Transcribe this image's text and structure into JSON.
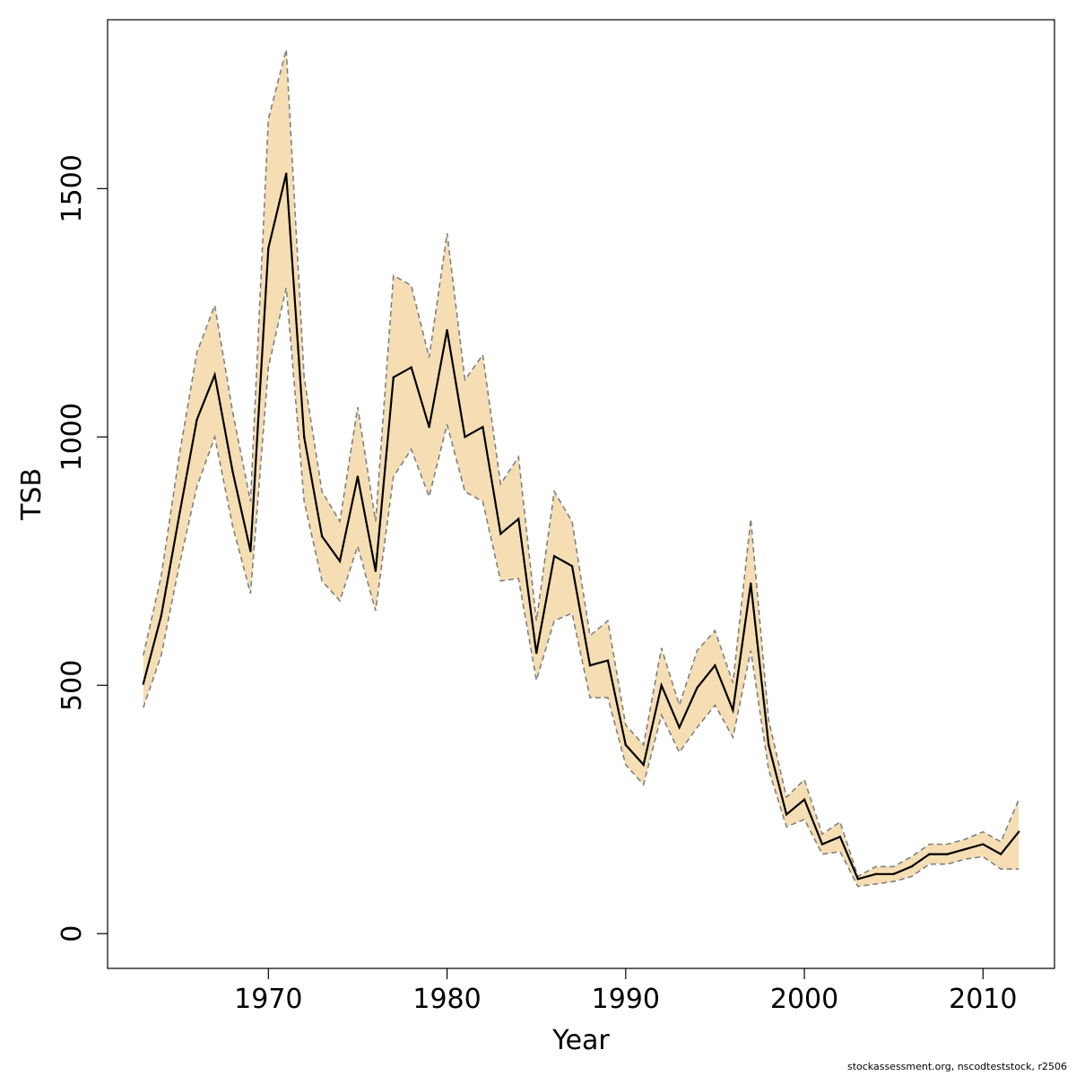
{
  "chart_data": {
    "type": "line",
    "xlabel": "Year",
    "ylabel": "TSB",
    "xlim": [
      1961,
      2014
    ],
    "ylim": [
      -70,
      1840
    ],
    "x_ticks": [
      1970,
      1980,
      1990,
      2000,
      2010
    ],
    "y_ticks": [
      0,
      500,
      1000,
      1500
    ],
    "colors": {
      "band": "#F5DEB3",
      "line": "#000000",
      "dash": "#808080",
      "frame": "#000000"
    },
    "grid": false,
    "legend": "none",
    "x": [
      1963,
      1964,
      1965,
      1966,
      1967,
      1968,
      1969,
      1970,
      1971,
      1972,
      1973,
      1974,
      1975,
      1976,
      1977,
      1978,
      1979,
      1980,
      1981,
      1982,
      1983,
      1984,
      1985,
      1986,
      1987,
      1988,
      1989,
      1990,
      1991,
      1992,
      1993,
      1994,
      1995,
      1996,
      1997,
      1998,
      1999,
      2000,
      2001,
      2002,
      2003,
      2004,
      2005,
      2006,
      2007,
      2008,
      2009,
      2010,
      2011,
      2012
    ],
    "series": [
      {
        "values": [
          503,
          640,
          840,
          1035,
          1125,
          930,
          770,
          1380,
          1530,
          1000,
          800,
          750,
          920,
          730,
          1120,
          1140,
          1020,
          1215,
          1000,
          1020,
          805,
          835,
          565,
          760,
          740,
          540,
          550,
          380,
          340,
          500,
          415,
          495,
          540,
          450,
          705,
          380,
          240,
          270,
          180,
          195,
          110,
          120,
          120,
          135,
          160,
          160,
          170,
          180,
          160,
          205
        ],
        "lower": [
          455,
          560,
          740,
          900,
          1000,
          820,
          685,
          1140,
          1300,
          870,
          710,
          670,
          780,
          650,
          920,
          975,
          880,
          1025,
          890,
          870,
          710,
          715,
          510,
          630,
          645,
          475,
          475,
          340,
          300,
          440,
          365,
          415,
          460,
          395,
          570,
          330,
          215,
          230,
          160,
          165,
          95,
          100,
          105,
          115,
          140,
          140,
          150,
          155,
          130,
          130
        ],
        "upper": [
          560,
          720,
          960,
          1170,
          1265,
          1050,
          870,
          1640,
          1780,
          1120,
          890,
          830,
          1060,
          830,
          1325,
          1305,
          1160,
          1410,
          1115,
          1165,
          905,
          960,
          630,
          890,
          830,
          600,
          630,
          420,
          380,
          575,
          460,
          570,
          610,
          505,
          835,
          430,
          275,
          310,
          200,
          225,
          115,
          135,
          135,
          155,
          180,
          180,
          190,
          205,
          185,
          270
        ]
      }
    ]
  },
  "footer_note": "stockassessment.org, nscodteststock, r2506"
}
